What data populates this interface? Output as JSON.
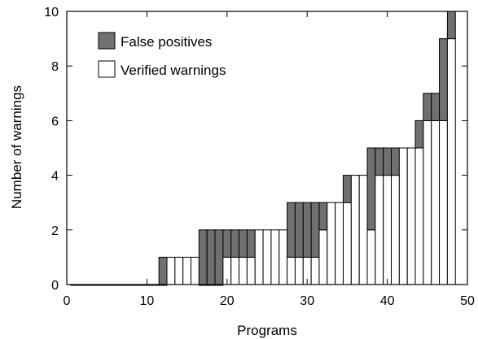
{
  "chart_data": {
    "type": "bar",
    "stacked": true,
    "xlabel": "Programs",
    "ylabel": "Number of warnings",
    "xlim": [
      0,
      50
    ],
    "ylim": [
      0,
      10
    ],
    "xticks": [
      0,
      10,
      20,
      30,
      40,
      50
    ],
    "yticks": [
      0,
      2,
      4,
      6,
      8,
      10
    ],
    "x": [
      1,
      2,
      3,
      4,
      5,
      6,
      7,
      8,
      9,
      10,
      11,
      12,
      13,
      14,
      15,
      16,
      17,
      18,
      19,
      20,
      21,
      22,
      23,
      24,
      25,
      26,
      27,
      28,
      29,
      30,
      31,
      32,
      33,
      34,
      35,
      36,
      37,
      38,
      39,
      40,
      41,
      42,
      43,
      44,
      45,
      46,
      47,
      48
    ],
    "series": [
      {
        "name": "Verified warnings",
        "color": "#ffffff",
        "values": [
          0,
          0,
          0,
          0,
          0,
          0,
          0,
          0,
          0,
          0,
          0,
          0,
          1,
          1,
          1,
          1,
          0,
          0,
          0,
          1,
          1,
          1,
          1,
          2,
          2,
          2,
          2,
          1,
          1,
          1,
          1,
          2,
          3,
          3,
          3,
          4,
          4,
          2,
          4,
          4,
          4,
          5,
          5,
          5,
          6,
          6,
          6,
          9
        ]
      },
      {
        "name": "False positives",
        "color": "#707070",
        "values": [
          0,
          0,
          0,
          0,
          0,
          0,
          0,
          0,
          0,
          0,
          0,
          1,
          0,
          0,
          0,
          0,
          2,
          2,
          2,
          1,
          1,
          1,
          1,
          0,
          0,
          0,
          0,
          2,
          2,
          2,
          2,
          1,
          0,
          0,
          1,
          0,
          0,
          3,
          1,
          1,
          1,
          0,
          0,
          1,
          1,
          1,
          3,
          1
        ]
      }
    ],
    "legend": {
      "position": "top-left",
      "entries": [
        {
          "label": "False positives",
          "color": "#707070"
        },
        {
          "label": "Verified warnings",
          "color": "#ffffff"
        }
      ]
    },
    "grid": false
  }
}
